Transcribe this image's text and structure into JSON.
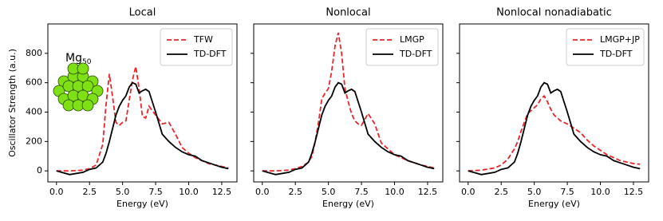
{
  "chart_data": [
    {
      "type": "line",
      "title": "Local",
      "xlabel": "Energy (eV)",
      "ylabel": "Oscillator Strength (a.u.)",
      "annotation": {
        "text": "Mg",
        "subscript": "50"
      },
      "x": [
        0,
        1,
        2,
        2.5,
        3,
        3.5,
        3.75,
        4,
        4.25,
        4.5,
        4.75,
        5,
        5.25,
        5.5,
        5.75,
        6,
        6.25,
        6.5,
        6.75,
        7,
        7.25,
        7.5,
        8,
        8.5,
        9,
        9.5,
        10,
        10.5,
        11,
        11.5,
        12,
        12.5,
        13
      ],
      "series": [
        {
          "name": "TFW",
          "color": "#e8262a",
          "dash": "dashed",
          "values": [
            0,
            0,
            5,
            15,
            40,
            180,
            450,
            660,
            500,
            330,
            310,
            330,
            340,
            480,
            620,
            710,
            560,
            370,
            360,
            440,
            410,
            380,
            320,
            330,
            250,
            160,
            120,
            90,
            70,
            50,
            40,
            30,
            20
          ]
        },
        {
          "name": "TD-DFT",
          "color": "#000000",
          "dash": "solid",
          "values": [
            0,
            -25,
            -10,
            10,
            20,
            60,
            120,
            200,
            290,
            380,
            440,
            480,
            510,
            570,
            600,
            590,
            530,
            545,
            555,
            540,
            470,
            400,
            250,
            200,
            160,
            130,
            110,
            100,
            70,
            55,
            40,
            25,
            15
          ]
        }
      ],
      "xlim": [
        -0.65,
        13.65
      ],
      "ylim": [
        -75,
        1000
      ],
      "xticks": [
        {
          "value": 0,
          "label": "0.0"
        },
        {
          "value": 2.5,
          "label": "2.5"
        },
        {
          "value": 5,
          "label": "5.0"
        },
        {
          "value": 7.5,
          "label": "7.5"
        },
        {
          "value": 10,
          "label": "10.0"
        },
        {
          "value": 12.5,
          "label": "12.5"
        }
      ],
      "yticks": [
        0,
        200,
        400,
        600,
        800
      ],
      "ytick_labels": true,
      "legend": "upper right"
    },
    {
      "type": "line",
      "title": "Nonlocal",
      "xlabel": "Energy (eV)",
      "x": [
        0,
        1,
        2,
        2.5,
        3,
        3.5,
        3.75,
        4,
        4.25,
        4.5,
        4.75,
        5,
        5.25,
        5.5,
        5.75,
        6,
        6.25,
        6.5,
        6.75,
        7,
        7.25,
        7.5,
        8,
        8.5,
        9,
        9.5,
        10,
        10.5,
        11,
        11.5,
        12,
        12.5,
        13
      ],
      "series": [
        {
          "name": "LMGP",
          "color": "#e8262a",
          "dash": "dashed",
          "values": [
            0,
            0,
            5,
            15,
            30,
            60,
            100,
            200,
            330,
            490,
            530,
            560,
            680,
            850,
            940,
            800,
            560,
            470,
            390,
            340,
            320,
            310,
            390,
            320,
            190,
            150,
            110,
            90,
            70,
            55,
            40,
            30,
            20
          ]
        },
        {
          "name": "TD-DFT",
          "color": "#000000",
          "dash": "solid",
          "values": [
            0,
            -25,
            -10,
            10,
            20,
            60,
            120,
            200,
            290,
            380,
            440,
            480,
            510,
            570,
            600,
            590,
            530,
            545,
            555,
            540,
            470,
            400,
            250,
            200,
            160,
            130,
            110,
            100,
            70,
            55,
            40,
            25,
            15
          ]
        }
      ],
      "xlim": [
        -0.65,
        13.65
      ],
      "ylim": [
        -75,
        1000
      ],
      "xticks": [
        {
          "value": 0,
          "label": "0.0"
        },
        {
          "value": 2.5,
          "label": "2.5"
        },
        {
          "value": 5,
          "label": "5.0"
        },
        {
          "value": 7.5,
          "label": "7.5"
        },
        {
          "value": 10,
          "label": "10.0"
        },
        {
          "value": 12.5,
          "label": "12.5"
        }
      ],
      "yticks": [
        0,
        200,
        400,
        600,
        800
      ],
      "ytick_labels": false,
      "legend": "upper right"
    },
    {
      "type": "line",
      "title": "Nonlocal nonadiabatic",
      "xlabel": "Energy (eV)",
      "x": [
        0,
        1,
        2,
        2.5,
        3,
        3.5,
        3.75,
        4,
        4.25,
        4.5,
        4.75,
        5,
        5.25,
        5.5,
        5.75,
        6,
        6.25,
        6.5,
        6.75,
        7,
        7.25,
        7.5,
        8,
        8.5,
        9,
        9.5,
        10,
        10.5,
        11,
        11.5,
        12,
        12.5,
        13
      ],
      "series": [
        {
          "name": "LMGP+JP",
          "color": "#e8262a",
          "dash": "dashed",
          "values": [
            0,
            5,
            20,
            40,
            80,
            150,
            200,
            270,
            330,
            390,
            410,
            430,
            450,
            490,
            510,
            470,
            420,
            380,
            360,
            340,
            330,
            320,
            290,
            260,
            210,
            170,
            140,
            110,
            90,
            70,
            60,
            50,
            45
          ]
        },
        {
          "name": "TD-DFT",
          "color": "#000000",
          "dash": "solid",
          "values": [
            0,
            -25,
            -10,
            10,
            20,
            60,
            120,
            200,
            290,
            380,
            440,
            480,
            510,
            570,
            600,
            590,
            530,
            545,
            555,
            540,
            470,
            400,
            250,
            200,
            160,
            130,
            110,
            100,
            70,
            55,
            40,
            25,
            15
          ]
        }
      ],
      "xlim": [
        -0.65,
        13.65
      ],
      "ylim": [
        -75,
        1000
      ],
      "xticks": [
        {
          "value": 0,
          "label": "0.0"
        },
        {
          "value": 2.5,
          "label": "2.5"
        },
        {
          "value": 5,
          "label": "5.0"
        },
        {
          "value": 7.5,
          "label": "7.5"
        },
        {
          "value": 10,
          "label": "10.0"
        },
        {
          "value": 12.5,
          "label": "12.5"
        }
      ],
      "yticks": [
        0,
        200,
        400,
        600,
        800
      ],
      "ytick_labels": false,
      "legend": "upper right"
    }
  ]
}
